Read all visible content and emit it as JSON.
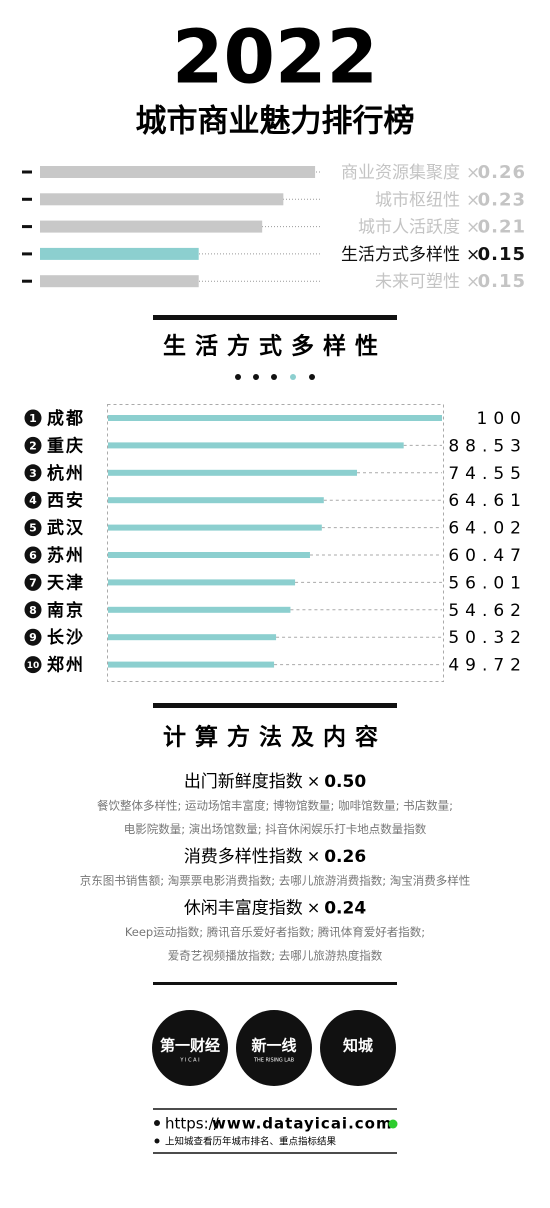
{
  "header": {
    "year": "2022",
    "title": "城市商业魅力排行榜"
  },
  "weights": {
    "times": "×",
    "active": 3,
    "items": [
      {
        "name": "商业资源集聚度",
        "value": 0.26
      },
      {
        "name": "城市枢纽性",
        "value": 0.23
      },
      {
        "name": "城市人活跃度",
        "value": 0.21
      },
      {
        "name": "生活方式多样性",
        "value": 0.15
      },
      {
        "name": "未来可塑性",
        "value": 0.15
      }
    ]
  },
  "chart_data": {
    "type": "bar",
    "title": "生活方式多样性",
    "ranks": [
      1,
      2,
      3,
      4,
      5,
      6,
      7,
      8,
      9,
      10
    ],
    "categories": [
      "成都",
      "重庆",
      "杭州",
      "西安",
      "武汉",
      "苏州",
      "天津",
      "南京",
      "长沙",
      "郑州"
    ],
    "values": [
      100,
      88.53,
      74.55,
      64.61,
      64.02,
      60.47,
      56.01,
      54.62,
      50.32,
      49.72
    ],
    "color": "#8ccfcf",
    "xlim": [
      0,
      100
    ]
  },
  "method": {
    "title": "计算方法及内容",
    "times": "×",
    "items": [
      {
        "name": "出门新鲜度指数",
        "weight": "0.50",
        "lines": [
          "餐饮整体多样性; 运动场馆丰富度; 博物馆数量; 咖啡馆数量; 书店数量;",
          "电影院数量; 演出场馆数量; 抖音休闲娱乐打卡地点数量指数"
        ]
      },
      {
        "name": "消费多样性指数",
        "weight": "0.26",
        "lines": [
          "京东图书销售额; 淘票票电影消费指数; 去哪儿旅游消费指数; 淘宝消费多样性"
        ]
      },
      {
        "name": "休闲丰富度指数",
        "weight": "0.24",
        "lines": [
          "Keep运动指数; 腾讯音乐爱好者指数; 腾讯体育爱好者指数;",
          "爱奇艺视频播放指数; 去哪儿旅游热度指数"
        ]
      }
    ]
  },
  "logos": [
    {
      "name": "第一财经",
      "sub": "Y I C A I"
    },
    {
      "name": "新一线",
      "sub": "THE RISING LAB"
    },
    {
      "name": "知城",
      "sub": ""
    }
  ],
  "footer": {
    "url_prefix": "https://",
    "url": "www.datayicai.com",
    "note": "上知城查看历年城市排名、重点指标结果"
  }
}
